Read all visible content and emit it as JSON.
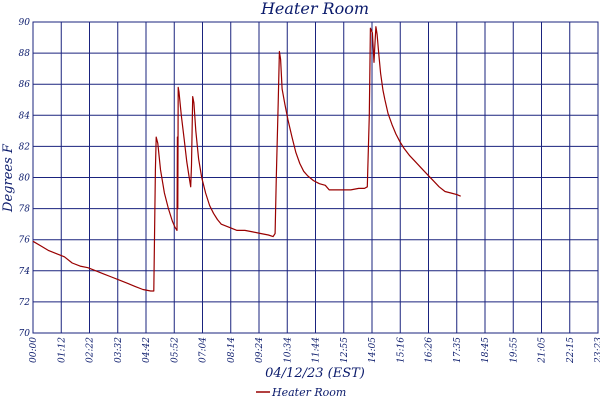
{
  "chart_data": {
    "type": "line",
    "title": "Heater Room",
    "xlabel": "04/12/23 (EST)",
    "ylabel": "Degrees F",
    "ylim": [
      70,
      90
    ],
    "yticks": [
      70,
      72,
      74,
      76,
      78,
      80,
      82,
      84,
      86,
      88,
      90
    ],
    "xlim_minutes": [
      0,
      1440
    ],
    "xtick_labels": [
      "00:00",
      "01:12",
      "02:22",
      "03:32",
      "04:42",
      "05:52",
      "07:04",
      "08:14",
      "09:24",
      "10:34",
      "11:44",
      "12:55",
      "14:05",
      "15:16",
      "16:26",
      "17:35",
      "18:45",
      "19:55",
      "21:05",
      "22:15",
      "23:23"
    ],
    "grid": true,
    "legend_position": "bottom-center",
    "colors": {
      "series": "#990000",
      "grid": "#1a237e",
      "text": "#0a1a6b"
    },
    "series": [
      {
        "name": "Heater Room",
        "points": [
          [
            0,
            75.9
          ],
          [
            20,
            75.6
          ],
          [
            40,
            75.3
          ],
          [
            60,
            75.1
          ],
          [
            80,
            74.9
          ],
          [
            100,
            74.5
          ],
          [
            120,
            74.3
          ],
          [
            140,
            74.2
          ],
          [
            160,
            74.0
          ],
          [
            180,
            73.8
          ],
          [
            200,
            73.6
          ],
          [
            220,
            73.4
          ],
          [
            240,
            73.2
          ],
          [
            260,
            73.0
          ],
          [
            280,
            72.8
          ],
          [
            300,
            72.7
          ],
          [
            308,
            72.7
          ],
          [
            312,
            80.5
          ],
          [
            314,
            82.6
          ],
          [
            318,
            82.2
          ],
          [
            325,
            80.5
          ],
          [
            335,
            79.0
          ],
          [
            345,
            78.0
          ],
          [
            355,
            77.2
          ],
          [
            362,
            76.8
          ],
          [
            367,
            76.6
          ],
          [
            368,
            82.6
          ],
          [
            369,
            78.0
          ],
          [
            370,
            85.8
          ],
          [
            372,
            85.5
          ],
          [
            378,
            84.0
          ],
          [
            385,
            82.5
          ],
          [
            392,
            81.0
          ],
          [
            398,
            80.0
          ],
          [
            402,
            79.4
          ],
          [
            404,
            80.8
          ],
          [
            407,
            85.2
          ],
          [
            410,
            84.8
          ],
          [
            415,
            83.0
          ],
          [
            422,
            81.2
          ],
          [
            430,
            80.0
          ],
          [
            440,
            79.0
          ],
          [
            450,
            78.2
          ],
          [
            460,
            77.7
          ],
          [
            470,
            77.3
          ],
          [
            480,
            77.0
          ],
          [
            500,
            76.8
          ],
          [
            520,
            76.6
          ],
          [
            540,
            76.6
          ],
          [
            560,
            76.5
          ],
          [
            580,
            76.4
          ],
          [
            600,
            76.3
          ],
          [
            612,
            76.2
          ],
          [
            617,
            76.4
          ],
          [
            620,
            80.0
          ],
          [
            625,
            84.8
          ],
          [
            628,
            88.1
          ],
          [
            631,
            87.6
          ],
          [
            635,
            85.7
          ],
          [
            642,
            84.7
          ],
          [
            650,
            83.7
          ],
          [
            660,
            82.6
          ],
          [
            670,
            81.6
          ],
          [
            680,
            80.9
          ],
          [
            690,
            80.4
          ],
          [
            700,
            80.1
          ],
          [
            715,
            79.8
          ],
          [
            730,
            79.6
          ],
          [
            745,
            79.5
          ],
          [
            755,
            79.2
          ],
          [
            770,
            79.2
          ],
          [
            790,
            79.2
          ],
          [
            810,
            79.2
          ],
          [
            830,
            79.3
          ],
          [
            845,
            79.3
          ],
          [
            852,
            79.4
          ],
          [
            857,
            84.0
          ],
          [
            860,
            89.6
          ],
          [
            865,
            89.3
          ],
          [
            869,
            87.4
          ],
          [
            871,
            88.3
          ],
          [
            874,
            89.7
          ],
          [
            877,
            89.2
          ],
          [
            881,
            88.0
          ],
          [
            886,
            86.7
          ],
          [
            892,
            85.6
          ],
          [
            897,
            85.0
          ],
          [
            905,
            84.1
          ],
          [
            915,
            83.4
          ],
          [
            925,
            82.8
          ],
          [
            935,
            82.3
          ],
          [
            945,
            81.9
          ],
          [
            960,
            81.4
          ],
          [
            975,
            81.0
          ],
          [
            990,
            80.6
          ],
          [
            1005,
            80.2
          ],
          [
            1020,
            79.8
          ],
          [
            1035,
            79.4
          ],
          [
            1050,
            79.1
          ],
          [
            1065,
            79.0
          ],
          [
            1080,
            78.9
          ],
          [
            1090,
            78.8
          ]
        ]
      }
    ]
  }
}
